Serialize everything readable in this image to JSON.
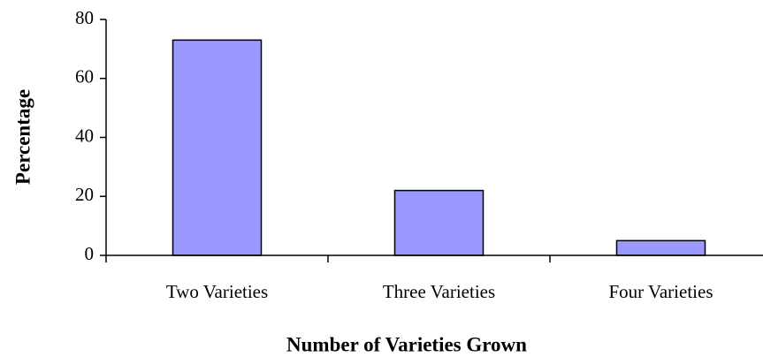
{
  "chart_data": {
    "type": "bar",
    "x_label": "Number of Varieties Grown",
    "y_label": "Percentage",
    "categories": [
      "Two Varieties",
      "Three Varieties",
      "Four Varieties"
    ],
    "values": [
      73,
      22,
      5
    ],
    "color": "#9999ff",
    "ylim": [
      0,
      80
    ],
    "yticks": [
      0,
      20,
      40,
      60,
      80
    ],
    "grid": false
  }
}
